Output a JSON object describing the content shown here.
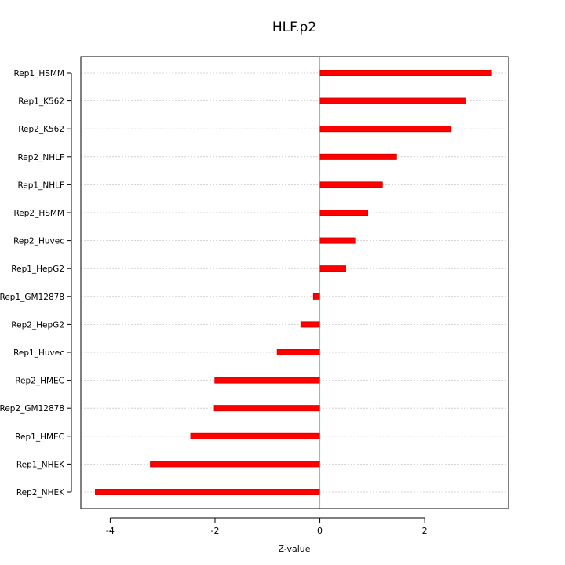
{
  "chart_data": {
    "type": "bar",
    "orientation": "horizontal",
    "title": "HLF.p2",
    "xlabel": "Z-value",
    "ylabel": "",
    "xlim": [
      -4.56,
      3.6
    ],
    "xticks": [
      -4,
      -2,
      0,
      2
    ],
    "xtick_labels": [
      "-4",
      "-2",
      "0",
      "2"
    ],
    "categories": [
      "Rep1_HSMM",
      "Rep1_K562",
      "Rep2_K562",
      "Rep2_NHLF",
      "Rep1_NHLF",
      "Rep2_HSMM",
      "Rep2_Huvec",
      "Rep1_HepG2",
      "Rep1_GM12878",
      "Rep2_HepG2",
      "Rep1_Huvec",
      "Rep2_HMEC",
      "Rep2_GM12878",
      "Rep1_HMEC",
      "Rep1_NHEK",
      "Rep2_NHEK"
    ],
    "values": [
      3.28,
      2.79,
      2.51,
      1.47,
      1.2,
      0.92,
      0.69,
      0.5,
      -0.13,
      -0.37,
      -0.82,
      -2.01,
      -2.02,
      -2.47,
      -3.24,
      -4.29
    ],
    "grid": "horizontal dotted",
    "zero_line_color": "#66dd66",
    "bar_color": "#ff0000"
  }
}
